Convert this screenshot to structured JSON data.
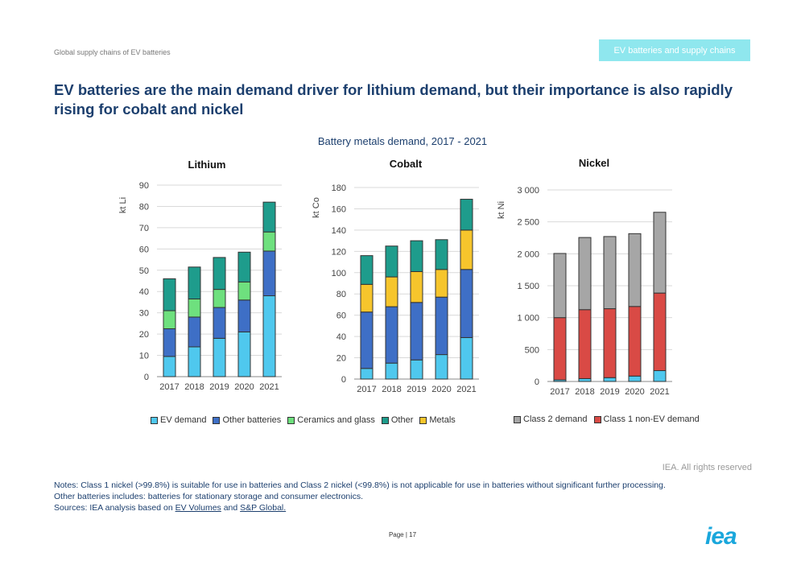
{
  "header": {
    "left_text": "Global supply chains of EV batteries",
    "badge": "EV batteries and supply chains"
  },
  "headline": "EV batteries are the main demand driver for lithium demand, but their importance is also rapidly rising for cobalt and nickel",
  "figure_title": "Battery metals demand, 2017 - 2021",
  "colors": {
    "ev": "#4fc8ee",
    "other_batt": "#3e6fc6",
    "ceramics": "#6ee07e",
    "other": "#1e9c8c",
    "metals": "#f6c52c",
    "class2": "#a6a6a6",
    "class1": "#d94a45",
    "grid": "#d9d9d9",
    "outline": "#333333"
  },
  "chart_data": [
    {
      "type": "bar",
      "stacked": true,
      "title": "Lithium",
      "ylabel": "kt Li",
      "ylim": [
        0,
        90
      ],
      "yticks": [
        "0",
        "10",
        "20",
        "30",
        "40",
        "50",
        "60",
        "70",
        "80",
        "90"
      ],
      "categories": [
        "2017",
        "2018",
        "2019",
        "2020",
        "2021"
      ],
      "series": [
        {
          "name": "EV demand",
          "key": "ev",
          "values": [
            9.5,
            14,
            18,
            21,
            38
          ]
        },
        {
          "name": "Other batteries",
          "key": "other_batt",
          "values": [
            13,
            14,
            14.5,
            15,
            21
          ]
        },
        {
          "name": "Ceramics and glass",
          "key": "ceramics",
          "values": [
            8.5,
            8.5,
            8.5,
            8.5,
            9
          ]
        },
        {
          "name": "Other",
          "key": "other",
          "values": [
            15,
            15,
            15,
            14,
            14
          ]
        }
      ]
    },
    {
      "type": "bar",
      "stacked": true,
      "title": "Cobalt",
      "ylabel": "kt Co",
      "ylim": [
        0,
        180
      ],
      "yticks": [
        "0",
        "20",
        "40",
        "60",
        "80",
        "100",
        "120",
        "140",
        "160",
        "180"
      ],
      "categories": [
        "2017",
        "2018",
        "2019",
        "2020",
        "2021"
      ],
      "series": [
        {
          "name": "EV demand",
          "key": "ev",
          "values": [
            10,
            15,
            18,
            23,
            39
          ]
        },
        {
          "name": "Other batteries",
          "key": "other_batt",
          "values": [
            53,
            53,
            54,
            54,
            64
          ]
        },
        {
          "name": "Metals",
          "key": "metals",
          "values": [
            26,
            28,
            29,
            26,
            37
          ]
        },
        {
          "name": "Other",
          "key": "other",
          "values": [
            27,
            29,
            29,
            28,
            29
          ]
        }
      ]
    },
    {
      "type": "bar",
      "stacked": true,
      "title": "Nickel",
      "ylabel": "kt Ni",
      "ylim": [
        0,
        3000
      ],
      "yticks": [
        "0",
        "500",
        "1 000",
        "1 500",
        "2 000",
        "2 500",
        "3 000"
      ],
      "categories": [
        "2017",
        "2018",
        "2019",
        "2020",
        "2021"
      ],
      "series": [
        {
          "name": "EV demand",
          "key": "ev",
          "values": [
            25,
            45,
            60,
            85,
            170
          ]
        },
        {
          "name": "Class 1 non-EV demand",
          "key": "class1",
          "values": [
            975,
            1080,
            1080,
            1090,
            1215
          ]
        },
        {
          "name": "Class 2 demand",
          "key": "class2",
          "values": [
            1005,
            1130,
            1130,
            1140,
            1265
          ]
        }
      ]
    }
  ],
  "legend_left": [
    {
      "label": "EV demand",
      "key": "ev"
    },
    {
      "label": "Other batteries",
      "key": "other_batt"
    },
    {
      "label": "Ceramics and glass",
      "key": "ceramics"
    },
    {
      "label": "Other",
      "key": "other"
    },
    {
      "label": "Metals",
      "key": "metals"
    }
  ],
  "legend_right": [
    {
      "label": "Class 2 demand",
      "key": "class2"
    },
    {
      "label": "Class 1 non-EV demand",
      "key": "class1"
    }
  ],
  "rights": "IEA. All rights reserved",
  "notes": {
    "line1": "Notes: Class 1 nickel (>99.8%) is suitable for use in batteries and Class 2 nickel (<99.8%) is not applicable for use in batteries without significant further processing.",
    "line2": "Other batteries includes: batteries for stationary storage and consumer electronics.",
    "sources_prefix": "Sources: IEA analysis based on ",
    "link1": "EV Volumes",
    "and": " and ",
    "link2": "S&P Global."
  },
  "page": "Page | 17",
  "logo": "iea"
}
